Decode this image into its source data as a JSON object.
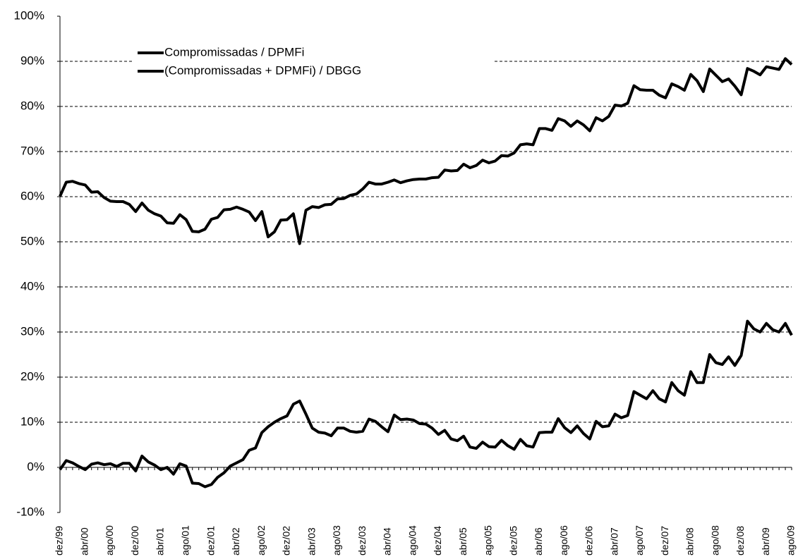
{
  "chart_data": {
    "type": "line",
    "categories": [
      "dez/99",
      null,
      null,
      null,
      "abr/00",
      null,
      null,
      null,
      "ago/00",
      null,
      null,
      null,
      "dez/00",
      null,
      null,
      null,
      "abr/01",
      null,
      null,
      null,
      "ago/01",
      null,
      null,
      null,
      "dez/01",
      null,
      null,
      null,
      "abr/02",
      null,
      null,
      null,
      "ago/02",
      null,
      null,
      null,
      "dez/02",
      null,
      null,
      null,
      "abr/03",
      null,
      null,
      null,
      "ago/03",
      null,
      null,
      null,
      "dez/03",
      null,
      null,
      null,
      "abr/04",
      null,
      null,
      null,
      "ago/04",
      null,
      null,
      null,
      "dez/04",
      null,
      null,
      null,
      "abr/05",
      null,
      null,
      null,
      "ago/05",
      null,
      null,
      null,
      "dez/05",
      null,
      null,
      null,
      "abr/06",
      null,
      null,
      null,
      "ago/06",
      null,
      null,
      null,
      "dez/06",
      null,
      null,
      null,
      "abr/07",
      null,
      null,
      null,
      "ago/07",
      null,
      null,
      null,
      "dez/07",
      null,
      null,
      null,
      "abr/08",
      null,
      null,
      null,
      "ago/08",
      null,
      null,
      null,
      "dez/08",
      null,
      null,
      null,
      "abr/09",
      null,
      null,
      null,
      "ago/09"
    ],
    "series": [
      {
        "name": "Compromissadas / DPMFi",
        "color": "#000000",
        "values": [
          -0.5,
          1.5,
          1.0,
          0.2,
          -0.5,
          0.7,
          1.0,
          0.6,
          0.8,
          0.2,
          0.9,
          0.9,
          -0.8,
          2.5,
          1.2,
          0.5,
          -0.5,
          0.0,
          -1.5,
          0.8,
          0.3,
          -3.5,
          -3.6,
          -4.3,
          -3.8,
          -2.2,
          -1.2,
          0.3,
          1.0,
          1.7,
          3.8,
          4.3,
          7.7,
          9.0,
          10.0,
          10.8,
          11.4,
          14.0,
          14.7,
          11.8,
          8.7,
          7.8,
          7.6,
          7.0,
          8.7,
          8.7,
          8.0,
          7.8,
          8.0,
          10.7,
          10.2,
          9.0,
          7.9,
          11.6,
          10.6,
          10.7,
          10.5,
          9.7,
          9.6,
          8.7,
          7.3,
          8.2,
          6.3,
          5.9,
          6.9,
          4.5,
          4.2,
          5.6,
          4.6,
          4.5,
          6.0,
          4.8,
          4.0,
          6.2,
          4.8,
          4.5,
          7.7,
          7.8,
          7.8,
          10.8,
          8.8,
          7.7,
          9.2,
          7.5,
          6.3,
          10.2,
          9.0,
          9.2,
          11.8,
          11.0,
          11.5,
          16.8,
          16.0,
          15.2,
          17.0,
          15.2,
          14.5,
          18.8,
          17.0,
          16.0,
          21.2,
          18.8,
          18.8,
          25.0,
          23.2,
          22.8,
          24.5,
          22.6,
          24.8,
          32.4,
          30.7,
          30.0,
          31.9,
          30.5,
          30.0,
          31.9,
          29.3
        ]
      },
      {
        "name": "(Compromissadas + DPMFi) / DBGG",
        "color": "#000000",
        "values": [
          60.1,
          63.2,
          63.4,
          62.9,
          62.6,
          61.0,
          61.1,
          59.8,
          59.0,
          58.9,
          58.9,
          58.3,
          56.7,
          58.6,
          57.0,
          56.2,
          55.7,
          54.2,
          54.1,
          56.0,
          54.9,
          52.3,
          52.2,
          52.8,
          55.0,
          55.4,
          57.1,
          57.2,
          57.7,
          57.2,
          56.6,
          54.7,
          56.7,
          51.1,
          52.2,
          54.8,
          54.9,
          56.2,
          49.6,
          57.0,
          57.8,
          57.6,
          58.2,
          58.3,
          59.5,
          59.6,
          60.3,
          60.6,
          61.7,
          63.2,
          62.8,
          62.8,
          63.2,
          63.7,
          63.1,
          63.5,
          63.8,
          63.9,
          63.9,
          64.2,
          64.3,
          65.9,
          65.7,
          65.8,
          67.2,
          66.4,
          66.9,
          68.1,
          67.5,
          67.9,
          69.1,
          69.0,
          69.7,
          71.5,
          71.7,
          71.5,
          75.1,
          75.1,
          74.7,
          77.3,
          76.8,
          75.6,
          76.8,
          75.9,
          74.6,
          77.5,
          76.8,
          77.8,
          80.3,
          80.1,
          80.7,
          84.6,
          83.7,
          83.6,
          83.6,
          82.5,
          81.9,
          85.0,
          84.4,
          83.6,
          87.1,
          85.7,
          83.3,
          88.3,
          86.9,
          85.5,
          86.1,
          84.5,
          82.6,
          88.4,
          87.8,
          87.0,
          88.8,
          88.5,
          88.2,
          90.6,
          89.3
        ]
      }
    ],
    "ylim": [
      -10,
      100
    ],
    "yticks": [
      {
        "value": -10,
        "label": "-10%"
      },
      {
        "value": 0,
        "label": "0%"
      },
      {
        "value": 10,
        "label": "10%"
      },
      {
        "value": 20,
        "label": "20%"
      },
      {
        "value": 30,
        "label": "30%"
      },
      {
        "value": 40,
        "label": "40%"
      },
      {
        "value": 50,
        "label": "50%"
      },
      {
        "value": 60,
        "label": "60%"
      },
      {
        "value": 70,
        "label": "70%"
      },
      {
        "value": 80,
        "label": "80%"
      },
      {
        "value": 90,
        "label": "90%"
      },
      {
        "value": 100,
        "label": "100%"
      }
    ],
    "grid": true,
    "legend": "upper left"
  }
}
